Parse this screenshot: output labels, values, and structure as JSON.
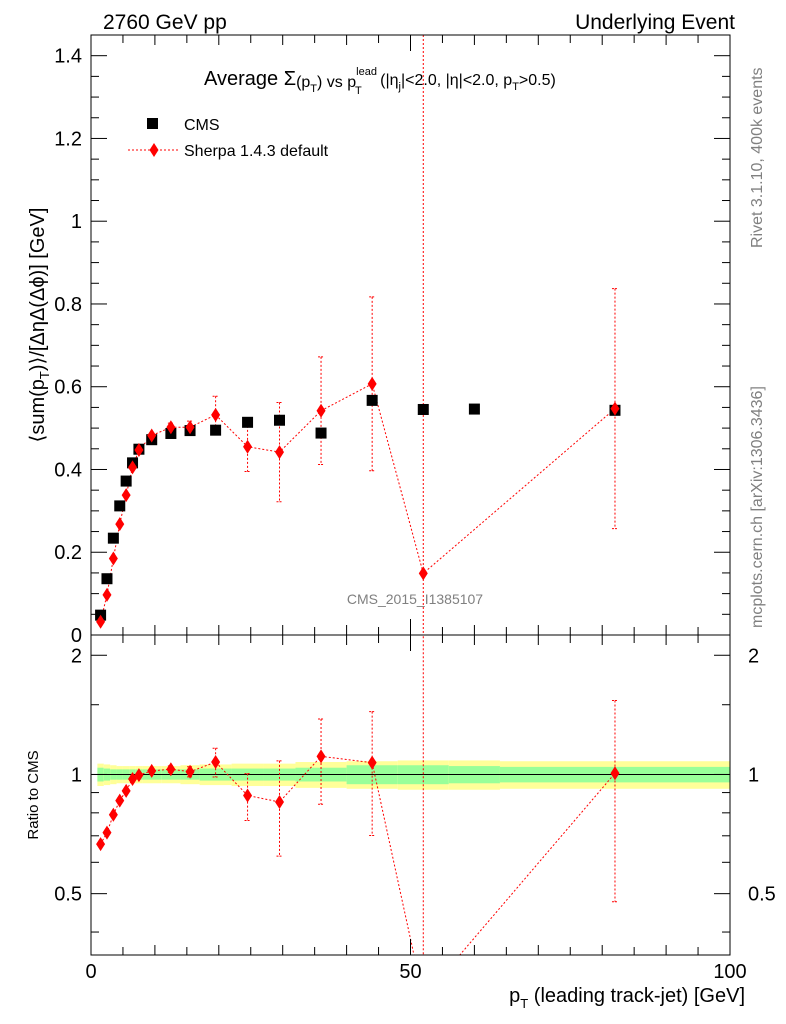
{
  "header": {
    "left": "2760 GeV pp",
    "right": "Underlying Event"
  },
  "side_labels": {
    "top": "Rivet 3.1.10,  400k events",
    "bottom": "mcplots.cern.ch [arXiv:1306.3436]"
  },
  "watermark": "CMS_2015_I1385107",
  "chart_data": [
    {
      "type": "scatter",
      "title": {
        "prefix": "Average ",
        "sigma": "Σ",
        "pt_p": "(p",
        "pt_sub": "T",
        "pt_close": ")",
        "vs": " vs p",
        "lead_sup": "lead",
        "lead_sub": "T",
        "cuts_open": " (|η",
        "cuts_j": "j",
        "cuts_mid": "|<2.0, |η|<2.0, p",
        "cuts_t": "T",
        "cuts_end": ">0.5)"
      },
      "ylabel": {
        "a": "⟨sum(p",
        "a_sub": "T",
        "b": ")⟩/[ΔηΔ(Δϕ)] [GeV]"
      },
      "xlim": [
        0,
        100
      ],
      "ylim": [
        0,
        1.45
      ],
      "y_ticks": [
        {
          "v": 0,
          "label": "0"
        },
        {
          "v": 0.2,
          "label": "0.2"
        },
        {
          "v": 0.4,
          "label": "0.4"
        },
        {
          "v": 0.6,
          "label": "0.6"
        },
        {
          "v": 0.8,
          "label": "0.8"
        },
        {
          "v": 1.0,
          "label": "1"
        },
        {
          "v": 1.2,
          "label": "1.2"
        },
        {
          "v": 1.4,
          "label": "1.4"
        }
      ],
      "legend_position": "top-left",
      "series": [
        {
          "name": "CMS",
          "color": "#000000",
          "marker": "square",
          "x": [
            1.5,
            2.5,
            3.5,
            4.5,
            5.5,
            6.5,
            7.5,
            9.5,
            12.5,
            15.5,
            19.5,
            24.5,
            29.5,
            36,
            44,
            52,
            60,
            82
          ],
          "y": [
            0.048,
            0.136,
            0.234,
            0.312,
            0.372,
            0.416,
            0.449,
            0.472,
            0.487,
            0.494,
            0.495,
            0.514,
            0.519,
            0.488,
            0.567,
            0.545,
            0.546,
            0.543
          ]
        },
        {
          "name": "Sherpa 1.4.3 default",
          "color": "#ff0000",
          "marker": "diamond",
          "x": [
            1.5,
            2.5,
            3.5,
            4.5,
            5.5,
            6.5,
            7.5,
            9.5,
            12.5,
            15.5,
            19.5,
            24.5,
            29.5,
            36,
            44,
            52,
            82
          ],
          "y": [
            0.032,
            0.097,
            0.185,
            0.268,
            0.338,
            0.405,
            0.447,
            0.482,
            0.502,
            0.502,
            0.532,
            0.455,
            0.442,
            0.542,
            0.607,
            0.149,
            0.547
          ],
          "err": [
            0,
            0,
            0,
            0,
            0,
            0,
            0,
            0,
            0.01,
            0.015,
            0.045,
            0.06,
            0.12,
            0.13,
            0.21,
            1.5,
            0.29
          ]
        }
      ]
    },
    {
      "type": "line",
      "xlabel": {
        "a": "p",
        "sub": "T",
        "b": " (leading track-jet) [GeV]"
      },
      "ylabel": "Ratio to CMS",
      "xlim": [
        0,
        100
      ],
      "ylim": [
        0.35,
        2.25
      ],
      "log_y": true,
      "x_ticks": [
        {
          "v": 0,
          "label": "0"
        },
        {
          "v": 50,
          "label": "50"
        },
        {
          "v": 100,
          "label": "100"
        }
      ],
      "y_ticks": [
        {
          "v": 0.5,
          "label": "0.5"
        },
        {
          "v": 1,
          "label": "1"
        },
        {
          "v": 2,
          "label": "2"
        }
      ],
      "reference_line": 1,
      "bands": {
        "edges": [
          1,
          2,
          3,
          4,
          5,
          6,
          7,
          8,
          11,
          14,
          17,
          22,
          27,
          32,
          40,
          48,
          56,
          64,
          100
        ],
        "inner": [
          0.04,
          0.035,
          0.03,
          0.03,
          0.03,
          0.03,
          0.03,
          0.03,
          0.03,
          0.03,
          0.035,
          0.035,
          0.035,
          0.04,
          0.055,
          0.055,
          0.05,
          0.045
        ],
        "outer": [
          0.065,
          0.06,
          0.055,
          0.05,
          0.05,
          0.05,
          0.05,
          0.05,
          0.05,
          0.055,
          0.06,
          0.065,
          0.065,
          0.075,
          0.08,
          0.085,
          0.085,
          0.08
        ],
        "inner_color": "#99ff99",
        "outer_color": "#ffff99"
      },
      "series": [
        {
          "name": "Sherpa 1.4.3 default",
          "color": "#ff0000",
          "x": [
            1.5,
            2.5,
            3.5,
            4.5,
            5.5,
            6.5,
            7.5,
            9.5,
            12.5,
            15.5,
            19.5,
            24.5,
            29.5,
            36,
            44,
            52,
            82
          ],
          "y": [
            0.667,
            0.713,
            0.791,
            0.859,
            0.909,
            0.974,
            0.996,
            1.021,
            1.031,
            1.016,
            1.075,
            0.885,
            0.852,
            1.111,
            1.071,
            0.273,
            1.007
          ],
          "err": [
            0,
            0,
            0,
            0,
            0,
            0,
            0,
            0,
            0.02,
            0.03,
            0.09,
            0.12,
            0.23,
            0.27,
            0.37,
            2.75,
            0.53
          ]
        }
      ]
    }
  ]
}
